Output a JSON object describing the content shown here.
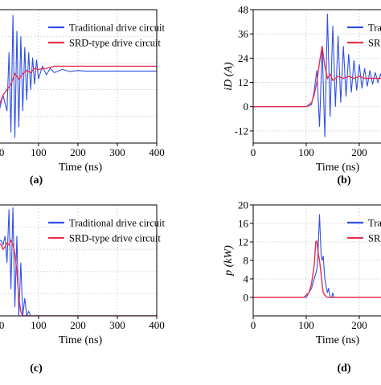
{
  "colors": {
    "traditional": "#3050e8",
    "srd": "#e83050",
    "axis": "#000000",
    "grid": "#d0d0d0"
  },
  "chart_data": [
    {
      "type": "line",
      "panel_label": "(a)",
      "xlabel": "Time (ns)",
      "ylabel": "",
      "xlim": [
        -10,
        400
      ],
      "ylim": [
        0,
        1.25
      ],
      "x_ticks": [
        0,
        100,
        200,
        300,
        400
      ],
      "x_tick_labels": [
        "00",
        "100",
        "200",
        "300",
        "400"
      ],
      "y_ticks": [],
      "y_tick_labels": [],
      "grid": true,
      "legend": {
        "placement": "top-right",
        "entries": [
          "Traditional drive circuit",
          "SRD-type drive circuit"
        ]
      },
      "series": [
        {
          "name": "Traditional drive circuit",
          "x": [
            -10,
            0,
            10,
            20,
            25,
            30,
            35,
            40,
            45,
            50,
            55,
            60,
            65,
            70,
            75,
            80,
            85,
            90,
            95,
            100,
            110,
            120,
            130,
            140,
            160,
            180,
            200,
            220,
            240,
            260,
            280,
            300,
            320,
            340,
            360,
            400
          ],
          "y": [
            0.15,
            0.3,
            0.45,
            0.3,
            0.85,
            0.1,
            1.2,
            0.05,
            1.05,
            0.15,
            1.0,
            0.3,
            0.9,
            0.4,
            0.85,
            0.5,
            0.8,
            0.55,
            0.78,
            0.6,
            0.72,
            0.64,
            0.7,
            0.66,
            0.69,
            0.67,
            0.68,
            0.675,
            0.675,
            0.675,
            0.675,
            0.675,
            0.675,
            0.675,
            0.675,
            0.675
          ]
        },
        {
          "name": "SRD-type drive circuit",
          "x": [
            -10,
            0,
            10,
            20,
            30,
            40,
            50,
            60,
            70,
            80,
            90,
            100,
            120,
            140,
            160,
            180,
            200,
            250,
            300,
            350,
            400
          ],
          "y": [
            0.2,
            0.35,
            0.45,
            0.5,
            0.55,
            0.65,
            0.6,
            0.65,
            0.68,
            0.66,
            0.7,
            0.69,
            0.7,
            0.72,
            0.72,
            0.72,
            0.72,
            0.72,
            0.72,
            0.72,
            0.72
          ]
        }
      ]
    },
    {
      "type": "line",
      "panel_label": "(b)",
      "xlabel": "Time (ns)",
      "ylabel": "iD (A)",
      "xlim": [
        0,
        250
      ],
      "ylim": [
        -18,
        48
      ],
      "x_ticks": [
        0,
        100,
        200
      ],
      "x_tick_labels": [
        "0",
        "100",
        "200"
      ],
      "y_ticks": [
        -12,
        0,
        12,
        24,
        36,
        48
      ],
      "y_tick_labels": [
        "-12",
        "0",
        "12",
        "24",
        "36",
        "48"
      ],
      "grid": true,
      "legend": {
        "placement": "top-right",
        "entries": [
          "Tra",
          "SRI"
        ]
      },
      "series": [
        {
          "name": "Traditional drive circuit",
          "x": [
            0,
            100,
            110,
            115,
            120,
            125,
            130,
            135,
            140,
            145,
            150,
            155,
            160,
            165,
            170,
            175,
            180,
            185,
            190,
            195,
            200,
            205,
            210,
            215,
            220,
            225,
            230,
            235,
            240,
            245,
            250
          ],
          "y": [
            0,
            0,
            1,
            8,
            18,
            -10,
            30,
            -15,
            46,
            -5,
            40,
            0,
            35,
            2,
            30,
            5,
            26,
            7,
            23,
            8,
            21,
            9,
            19,
            10,
            18,
            11,
            17,
            12,
            16,
            13,
            15
          ]
        },
        {
          "name": "SRD-type drive circuit",
          "x": [
            0,
            100,
            110,
            115,
            120,
            125,
            130,
            135,
            140,
            145,
            150,
            160,
            170,
            180,
            190,
            200,
            210,
            220,
            230,
            240,
            250
          ],
          "y": [
            0,
            0,
            2,
            6,
            12,
            22,
            30,
            20,
            14,
            16,
            13,
            15,
            14,
            15,
            14,
            15,
            14,
            14,
            14,
            14,
            14
          ]
        }
      ]
    },
    {
      "type": "line",
      "panel_label": "(c)",
      "xlabel": "Time (ns)",
      "ylabel": "",
      "xlim": [
        -10,
        400
      ],
      "ylim": [
        0,
        1.25
      ],
      "x_ticks": [
        0,
        100,
        200,
        300,
        400
      ],
      "x_tick_labels": [
        "00",
        "100",
        "200",
        "300",
        "400"
      ],
      "y_ticks": [],
      "y_tick_labels": [],
      "grid": true,
      "legend": {
        "placement": "top-right",
        "entries": [
          "Traditional drive circuit",
          "SRD-type drive circuit"
        ]
      },
      "series": [
        {
          "name": "Traditional drive circuit",
          "x": [
            -10,
            0,
            5,
            10,
            15,
            20,
            25,
            30,
            35,
            40,
            45,
            50,
            55,
            60,
            65,
            70,
            75,
            80,
            90,
            100,
            110,
            120,
            400
          ],
          "y": [
            0.85,
            0.85,
            0.85,
            0.8,
            0.9,
            0.6,
            1.2,
            0.3,
            1.22,
            0.1,
            0.9,
            0.0,
            0.6,
            0.0,
            0.2,
            0.0,
            0.05,
            0.0,
            0.0,
            0.0,
            0.0,
            0.0,
            0.0
          ]
        },
        {
          "name": "SRD-type drive circuit",
          "x": [
            -10,
            0,
            5,
            10,
            15,
            20,
            25,
            30,
            35,
            40,
            45,
            50,
            55,
            60,
            70,
            80,
            100,
            400
          ],
          "y": [
            0.82,
            0.82,
            0.8,
            0.75,
            0.78,
            0.82,
            0.8,
            0.85,
            0.8,
            0.7,
            0.5,
            0.2,
            0.05,
            0.0,
            0.0,
            0.0,
            0.0,
            0.0
          ]
        }
      ]
    },
    {
      "type": "line",
      "panel_label": "(d)",
      "xlabel": "Time (ns)",
      "ylabel": "p (kW)",
      "xlim": [
        0,
        250
      ],
      "ylim": [
        -4,
        20
      ],
      "x_ticks": [
        0,
        100,
        200
      ],
      "x_tick_labels": [
        "0",
        "100",
        "200"
      ],
      "y_ticks": [
        0,
        4,
        8,
        12,
        16,
        20
      ],
      "y_tick_labels": [
        "0",
        "4",
        "8",
        "12",
        "16",
        "20"
      ],
      "grid": true,
      "legend": {
        "placement": "top-right",
        "entries": [
          "Tra",
          "SRI"
        ]
      },
      "series": [
        {
          "name": "Traditional drive circuit",
          "x": [
            0,
            95,
            100,
            105,
            110,
            115,
            120,
            122,
            125,
            128,
            130,
            132,
            135,
            138,
            140,
            142,
            145,
            148,
            150,
            152,
            155,
            160,
            250
          ],
          "y": [
            0,
            0,
            0,
            1,
            2,
            4,
            6,
            9,
            18,
            9,
            8,
            9,
            4,
            2,
            1,
            2,
            0,
            0,
            1,
            0,
            0,
            0,
            0
          ]
        },
        {
          "name": "SRD-type drive circuit",
          "x": [
            0,
            95,
            100,
            105,
            110,
            115,
            118,
            120,
            122,
            125,
            128,
            130,
            132,
            135,
            140,
            150,
            250
          ],
          "y": [
            0,
            0,
            0.5,
            1,
            3,
            7,
            12,
            12.2,
            10,
            8,
            5,
            3,
            1,
            0.5,
            0,
            0,
            0
          ]
        }
      ]
    }
  ]
}
